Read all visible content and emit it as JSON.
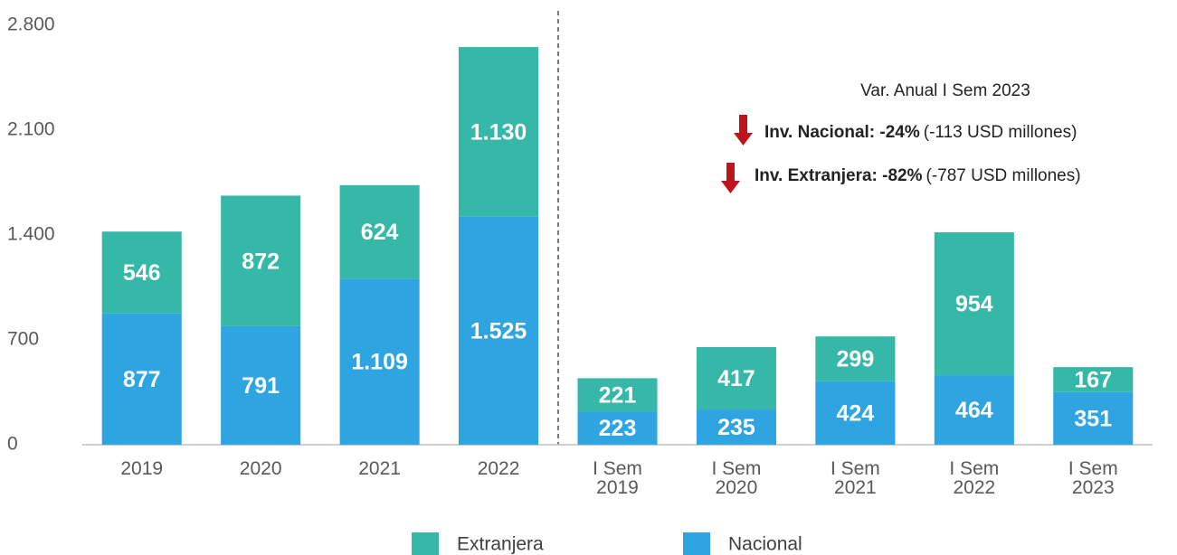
{
  "chart_data": {
    "type": "stacked-bar",
    "categories": [
      "2019",
      "2020",
      "2021",
      "2022",
      "I Sem\n2019",
      "I Sem\n2020",
      "I Sem\n2021",
      "I Sem\n2022",
      "I Sem\n2023"
    ],
    "series": [
      {
        "name": "Extranjera",
        "color": "#36b8a8",
        "values": [
          546,
          872,
          624,
          1130,
          221,
          417,
          299,
          954,
          167
        ],
        "value_labels": [
          "546",
          "872",
          "624",
          "1.130",
          "221",
          "417",
          "299",
          "954",
          "167"
        ]
      },
      {
        "name": "Nacional",
        "color": "#2ea5e0",
        "values": [
          877,
          791,
          1109,
          1525,
          223,
          235,
          424,
          464,
          351
        ],
        "value_labels": [
          "877",
          "791",
          "1.109",
          "1.525",
          "223",
          "235",
          "424",
          "464",
          "351"
        ]
      }
    ],
    "ylim": [
      0,
      2800
    ],
    "yticks": [
      0,
      700,
      {
        "value": 1400,
        "label": "1.400"
      },
      {
        "value": 2100,
        "label": "2.100"
      },
      {
        "value": 2800,
        "label": "2.800"
      }
    ],
    "annotations": {
      "title": "Var. Anual I Sem 2023",
      "items": [
        {
          "label": "Inv. Nacional: -24%",
          "detail": "(-113 USD millones)"
        },
        {
          "label": "Inv. Extranjera: -82%",
          "detail": "(-787 USD millones)"
        }
      ]
    }
  }
}
